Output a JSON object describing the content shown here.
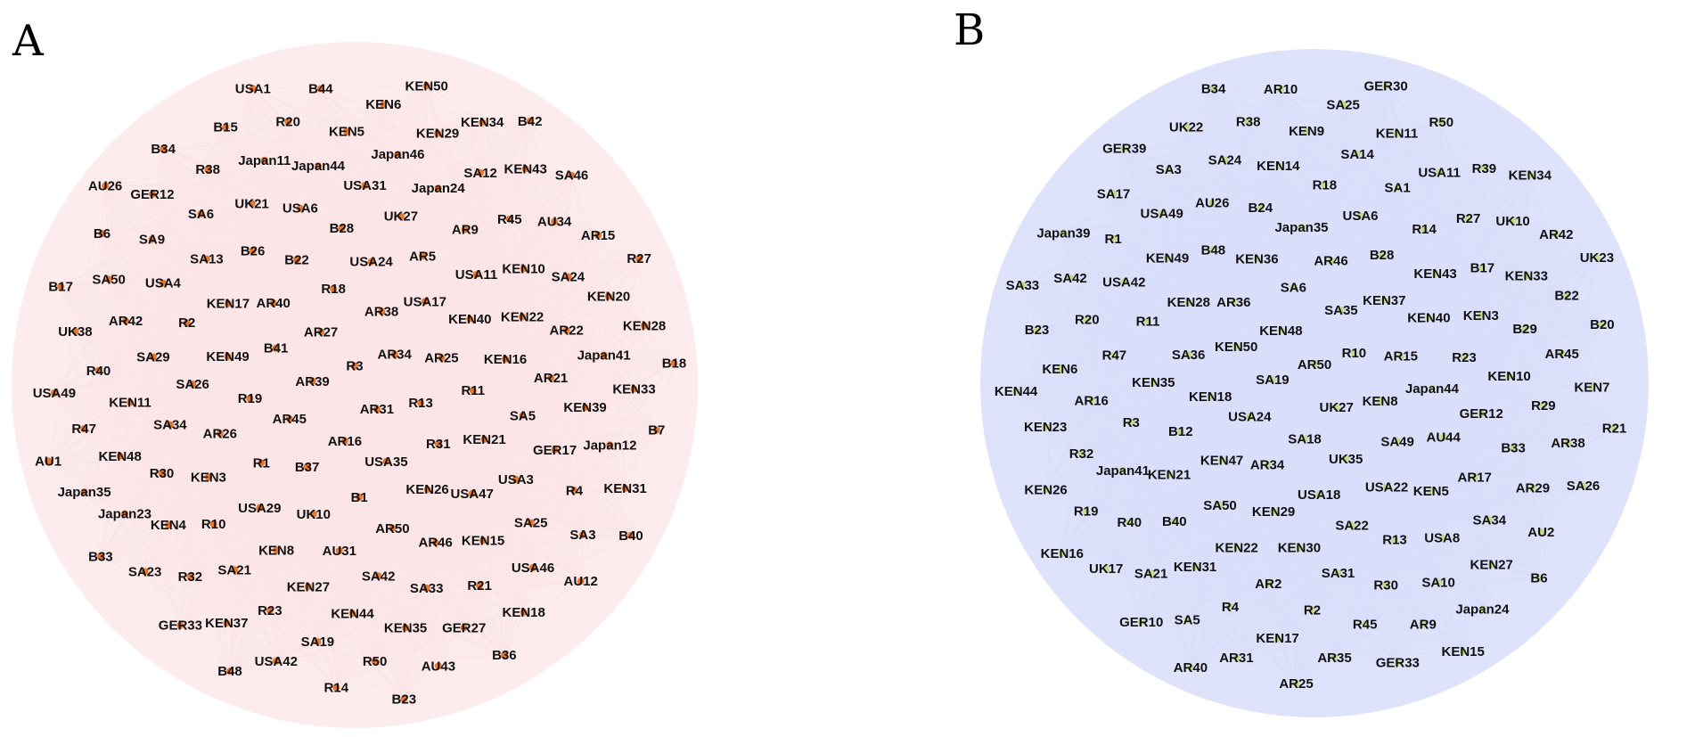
{
  "panels": [
    {
      "id": "A",
      "label": "A",
      "edge_color": "#e15060",
      "disc_color": "#f6c8cc",
      "node_color": "#e87830",
      "nodes": [
        "R3",
        "AR31",
        "AR39",
        "AR34",
        "AR16",
        "AR27",
        "R13",
        "AR45",
        "AR38",
        "USA35",
        "B41",
        "AR25",
        "B37",
        "R18",
        "R31",
        "R19",
        "USA17",
        "B1",
        "AR40",
        "R11",
        "R1",
        "USA24",
        "KEN26",
        "KEN49",
        "KEN40",
        "UK10",
        "B22",
        "KEN21",
        "AR26",
        "AR5",
        "AR50",
        "KEN17",
        "KEN16",
        "USA29",
        "B28",
        "USA47",
        "SA26",
        "USA11",
        "AU31",
        "B26",
        "SA5",
        "KEN3",
        "UK27",
        "AR46",
        "R2",
        "KEN22",
        "KEN8",
        "USA6",
        "USA3",
        "SA34",
        "AR9",
        "SA42",
        "SA13",
        "AR21",
        "R10",
        "USA31",
        "KEN15",
        "SA29",
        "KEN10",
        "KEN27",
        "UK21",
        "GER17",
        "R30",
        "Japan24",
        "SA33",
        "USA4",
        "AR22",
        "SA21",
        "Japan44",
        "SA25",
        "KEN11",
        "R45",
        "KEN44",
        "SA6",
        "KEN39",
        "KEN4",
        "Japan46",
        "R21",
        "AR42",
        "SA24",
        "R23",
        "Japan11",
        "R4",
        "KEN48",
        "SA12",
        "KEN35",
        "SA9",
        "Japan41",
        "R32",
        "KEN5",
        "USA46",
        "R40",
        "AU34",
        "SA19",
        "R38",
        "Japan12",
        "Japan23",
        "KEN29",
        "GER27",
        "SA50",
        "KEN20",
        "KEN37",
        "R20",
        "SA3",
        "R47",
        "KEN43",
        "R50",
        "GER12",
        "KEN33",
        "SA23",
        "KEN6",
        "KEN18",
        "UK38",
        "AR15",
        "USA42",
        "B15",
        "KEN31",
        "Japan35",
        "KEN34",
        "AU43",
        "B6",
        "KEN28",
        "GER33",
        "B44",
        "AU12",
        "USA49",
        "SA46",
        "R14",
        "B34",
        "B7",
        "B33",
        "KEN50",
        "B36",
        "B17",
        "R27",
        "B48",
        "USA1",
        "B40",
        "AU1",
        "B42",
        "B23",
        "AU26",
        "B18"
      ]
    },
    {
      "id": "B",
      "label": "B",
      "edge_color": "#8c9cf0",
      "disc_color": "#c3caf7",
      "node_color": "#c8d890",
      "nodes": [
        "AR50",
        "UK27",
        "SA19",
        "R10",
        "SA18",
        "KEN48",
        "KEN8",
        "USA24",
        "SA35",
        "UK35",
        "KEN50",
        "AR15",
        "AR34",
        "SA6",
        "SA49",
        "KEN18",
        "KEN37",
        "USA18",
        "AR36",
        "Japan44",
        "KEN47",
        "AR46",
        "USA22",
        "SA36",
        "KEN40",
        "KEN29",
        "KEN36",
        "AU44",
        "B12",
        "B28",
        "SA22",
        "KEN28",
        "R23",
        "SA50",
        "Japan35",
        "KEN5",
        "KEN35",
        "KEN43",
        "KEN30",
        "B48",
        "GER12",
        "KEN21",
        "USA6",
        "R13",
        "R11",
        "KEN3",
        "KEN22",
        "B24",
        "AR17",
        "R3",
        "R14",
        "SA31",
        "KEN49",
        "KEN10",
        "B40",
        "R18",
        "USA8",
        "R47",
        "B17",
        "AR2",
        "AU26",
        "B33",
        "Japan41",
        "SA1",
        "R30",
        "USA42",
        "B29",
        "KEN31",
        "KEN14",
        "SA34",
        "AR16",
        "R27",
        "R2",
        "USA49",
        "R29",
        "R40",
        "SA14",
        "SA10",
        "R20",
        "KEN33",
        "R4",
        "SA24",
        "AR29",
        "R32",
        "USA11",
        "R45",
        "R1",
        "AR45",
        "SA21",
        "KEN9",
        "KEN27",
        "KEN6",
        "UK10",
        "KEN17",
        "SA3",
        "AR38",
        "R19",
        "KEN11",
        "AR9",
        "SA42",
        "B22",
        "SA5",
        "R38",
        "AU2",
        "KEN23",
        "R39",
        "AR35",
        "SA17",
        "KEN7",
        "UK17",
        "SA25",
        "Japan24",
        "B23",
        "AR42",
        "AR31",
        "UK22",
        "SA26",
        "KEN26",
        "R50",
        "GER33",
        "Japan39",
        "B20",
        "GER10",
        "AR10",
        "B6",
        "KEN44",
        "KEN34",
        "AR25",
        "GER39",
        "R21",
        "KEN16",
        "GER30",
        "KEN15",
        "SA33",
        "UK23",
        "AR40",
        "B34"
      ]
    }
  ]
}
